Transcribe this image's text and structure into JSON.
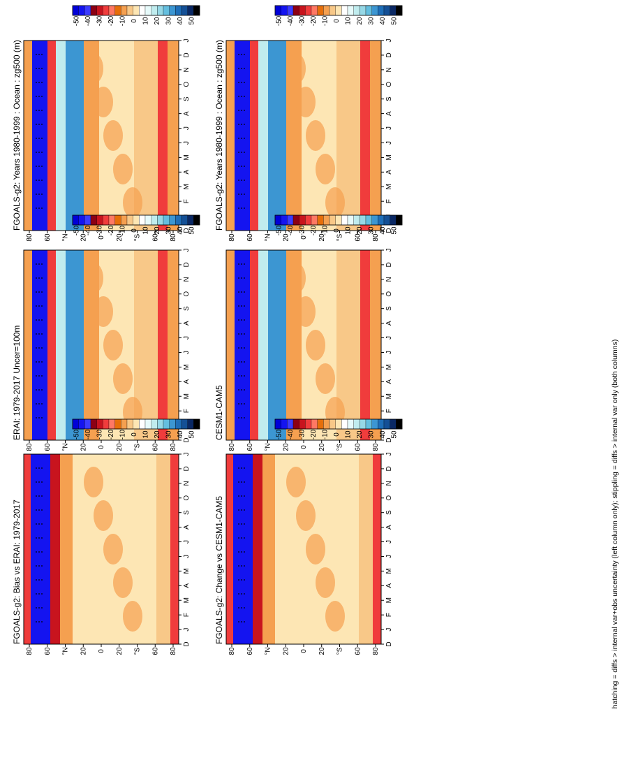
{
  "chart_data": [
    {
      "type": "heatmap",
      "title": "FGOALS-g2: Years 1980-1999 : Ocean : zg500 (m)",
      "xlabel": "",
      "ylabel": "",
      "y_ticks": [
        "80",
        "60",
        "°N",
        "20",
        "0",
        "20",
        "°S",
        "60",
        "80"
      ],
      "x_ticks": [
        "D",
        "J",
        "F",
        "M",
        "A",
        "M",
        "J",
        "J",
        "A",
        "S",
        "O",
        "N",
        "D",
        "J"
      ],
      "colorbar": {
        "labels": [
          "50",
          "40",
          "30",
          "20",
          "10",
          "0",
          "-10",
          "-20",
          "-30",
          "-40",
          "-50"
        ],
        "colors": [
          "#0000d8",
          "#1414f0",
          "#3c3cff",
          "#8c0014",
          "#c8141e",
          "#f03c3c",
          "#ff7864",
          "#e66e0a",
          "#f5a050",
          "#f8c888",
          "#fde6b4",
          "#ffffff",
          "#e6fafa",
          "#c0ecee",
          "#96d8e6",
          "#64bede",
          "#3c96d2",
          "#1e6eb8",
          "#145096",
          "#0a2864",
          "#000000"
        ]
      }
    },
    {
      "type": "heatmap",
      "title": "FGOALS-g2: Years 1980-1999 : Ocean : zg500 (m)",
      "xlabel": "",
      "ylabel": "",
      "y_ticks": [
        "80",
        "60",
        "°N",
        "20",
        "0",
        "20",
        "°S",
        "60",
        "80"
      ],
      "x_ticks": [
        "D",
        "J",
        "F",
        "M",
        "A",
        "M",
        "J",
        "J",
        "A",
        "S",
        "O",
        "N",
        "D",
        "J"
      ],
      "colorbar": {
        "labels": [
          "50",
          "40",
          "30",
          "20",
          "10",
          "0",
          "-10",
          "-20",
          "-30",
          "-40",
          "-50"
        ],
        "colors": [
          "#0000d8",
          "#1414f0",
          "#3c3cff",
          "#8c0014",
          "#c8141e",
          "#f03c3c",
          "#ff7864",
          "#e66e0a",
          "#f5a050",
          "#f8c888",
          "#fde6b4",
          "#ffffff",
          "#e6fafa",
          "#c0ecee",
          "#96d8e6",
          "#64bede",
          "#3c96d2",
          "#1e6eb8",
          "#145096",
          "#0a2864",
          "#000000"
        ]
      }
    },
    {
      "type": "heatmap",
      "title": "ERAI: 1979-2017 Uncer=100m",
      "xlabel": "",
      "ylabel": "",
      "y_ticks": [
        "80",
        "60",
        "°N",
        "20",
        "0",
        "20",
        "°S",
        "60",
        "80"
      ],
      "x_ticks": [
        "D",
        "J",
        "F",
        "M",
        "A",
        "M",
        "J",
        "J",
        "A",
        "S",
        "O",
        "N",
        "D",
        "J"
      ],
      "colorbar": {
        "labels": [
          "50",
          "40",
          "30",
          "20",
          "10",
          "0",
          "-10",
          "-20",
          "-30",
          "-40",
          "-50"
        ],
        "colors": [
          "#0000d8",
          "#1414f0",
          "#3c3cff",
          "#8c0014",
          "#c8141e",
          "#f03c3c",
          "#ff7864",
          "#e66e0a",
          "#f5a050",
          "#f8c888",
          "#fde6b4",
          "#ffffff",
          "#e6fafa",
          "#c0ecee",
          "#96d8e6",
          "#64bede",
          "#3c96d2",
          "#1e6eb8",
          "#145096",
          "#0a2864",
          "#000000"
        ]
      }
    },
    {
      "type": "heatmap",
      "title": "CESM1-CAM5",
      "xlabel": "",
      "ylabel": "",
      "y_ticks": [
        "80",
        "60",
        "°N",
        "20",
        "0",
        "20",
        "°S",
        "60",
        "80"
      ],
      "x_ticks": [
        "D",
        "J",
        "F",
        "M",
        "A",
        "M",
        "J",
        "J",
        "A",
        "S",
        "O",
        "N",
        "D",
        "J"
      ],
      "colorbar": {
        "labels": [
          "50",
          "40",
          "30",
          "20",
          "10",
          "0",
          "-10",
          "-20",
          "-30",
          "-40",
          "-50"
        ],
        "colors": [
          "#0000d8",
          "#1414f0",
          "#3c3cff",
          "#8c0014",
          "#c8141e",
          "#f03c3c",
          "#ff7864",
          "#e66e0a",
          "#f5a050",
          "#f8c888",
          "#fde6b4",
          "#ffffff",
          "#e6fafa",
          "#c0ecee",
          "#96d8e6",
          "#64bede",
          "#3c96d2",
          "#1e6eb8",
          "#145096",
          "#0a2864",
          "#000000"
        ]
      }
    },
    {
      "type": "heatmap",
      "title": "FGOALS-g2: Bias vs ERAI: 1979-2017",
      "xlabel": "",
      "ylabel": "",
      "y_ticks": [
        "80",
        "60",
        "°N",
        "20",
        "0",
        "20",
        "°S",
        "60",
        "80"
      ],
      "x_ticks": [
        "D",
        "J",
        "F",
        "M",
        "A",
        "M",
        "J",
        "J",
        "A",
        "S",
        "O",
        "N",
        "D",
        "J"
      ],
      "colorbar": {
        "labels": [
          "50",
          "40",
          "30",
          "20",
          "10",
          "0",
          "-10",
          "-20",
          "-30",
          "-40",
          "-50"
        ],
        "colors": [
          "#0000d8",
          "#1414f0",
          "#3c3cff",
          "#8c0014",
          "#c8141e",
          "#f03c3c",
          "#ff7864",
          "#e66e0a",
          "#f5a050",
          "#f8c888",
          "#fde6b4",
          "#ffffff",
          "#e6fafa",
          "#c0ecee",
          "#96d8e6",
          "#64bede",
          "#3c96d2",
          "#1e6eb8",
          "#145096",
          "#0a2864",
          "#000000"
        ]
      }
    },
    {
      "type": "heatmap",
      "title": "FGOALS-g2: Change vs CESM1-CAM5",
      "xlabel": "",
      "ylabel": "",
      "y_ticks": [
        "80",
        "60",
        "°N",
        "20",
        "0",
        "20",
        "°S",
        "60",
        "80"
      ],
      "x_ticks": [
        "D",
        "J",
        "F",
        "M",
        "A",
        "M",
        "J",
        "J",
        "A",
        "S",
        "O",
        "N",
        "D",
        "J"
      ],
      "colorbar": {
        "labels": [
          "50",
          "40",
          "30",
          "20",
          "10",
          "0",
          "-10",
          "-20",
          "-30",
          "-40",
          "-50"
        ],
        "colors": [
          "#0000d8",
          "#1414f0",
          "#3c3cff",
          "#8c0014",
          "#c8141e",
          "#f03c3c",
          "#ff7864",
          "#e66e0a",
          "#f5a050",
          "#f8c888",
          "#fde6b4",
          "#ffffff",
          "#e6fafa",
          "#c0ecee",
          "#96d8e6",
          "#64bede",
          "#3c96d2",
          "#1e6eb8",
          "#145096",
          "#0a2864",
          "#000000"
        ]
      }
    }
  ],
  "footnote": "hatching = diffs > internal var+obs uncertainty (left column only); stippling = diffs > internal var only (both columns)"
}
